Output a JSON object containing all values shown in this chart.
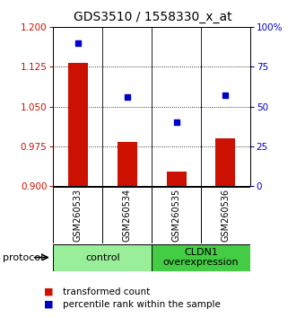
{
  "title": "GDS3510 / 1558330_x_at",
  "samples": [
    "GSM260533",
    "GSM260534",
    "GSM260535",
    "GSM260536"
  ],
  "transformed_count": [
    1.132,
    0.984,
    0.928,
    0.99
  ],
  "percentile_rank": [
    90,
    56,
    40,
    57
  ],
  "left_ylim": [
    0.9,
    1.2
  ],
  "left_yticks": [
    0.9,
    0.975,
    1.05,
    1.125,
    1.2
  ],
  "right_ylim": [
    0,
    100
  ],
  "right_yticks": [
    0,
    25,
    50,
    75,
    100
  ],
  "right_yticklabels": [
    "0",
    "25",
    "50",
    "75",
    "100%"
  ],
  "bar_color": "#cc1100",
  "dot_color": "#0000cc",
  "bar_bottom": 0.9,
  "groups": [
    {
      "label": "control",
      "indices": [
        0,
        1
      ],
      "color": "#99ee99"
    },
    {
      "label": "CLDN1\noverexpression",
      "indices": [
        2,
        3
      ],
      "color": "#44cc44"
    }
  ],
  "protocol_label": "protocol",
  "legend_bar_label": "transformed count",
  "legend_dot_label": "percentile rank within the sample",
  "title_fontsize": 10,
  "tick_fontsize": 7.5,
  "sample_fontsize": 7,
  "group_fontsize": 8,
  "legend_fontsize": 7.5,
  "protocol_fontsize": 8,
  "background_color": "#ffffff",
  "sample_bg_color": "#bbbbbb",
  "tick_color_left": "#cc1100",
  "tick_color_right": "#0000cc"
}
